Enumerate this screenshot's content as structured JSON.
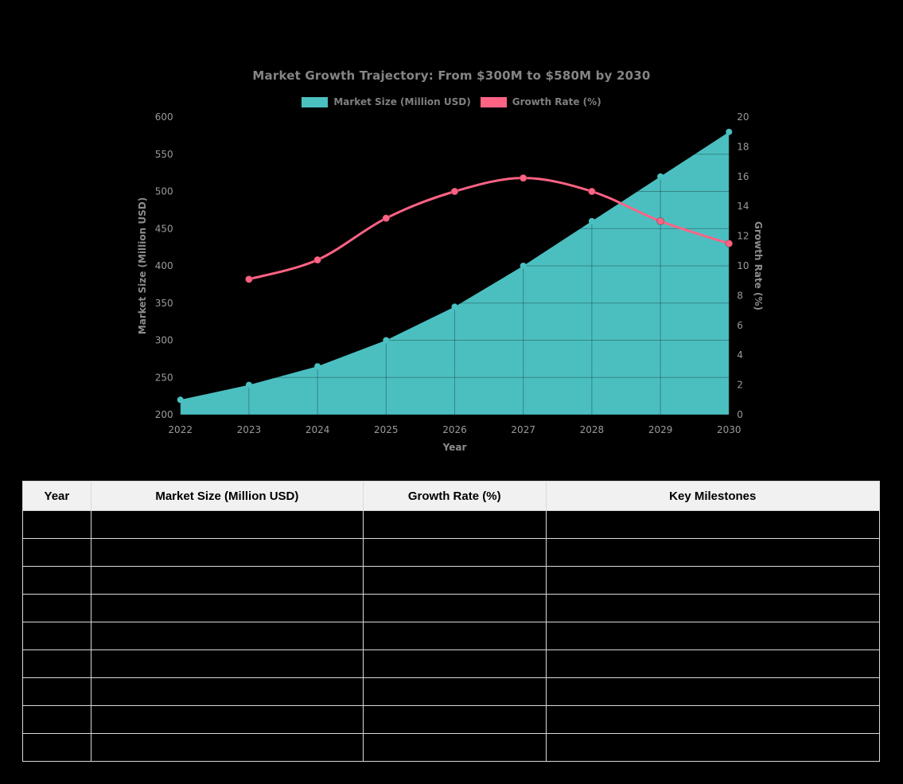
{
  "page": {
    "background": "#000000"
  },
  "chart": {
    "title": "Market Growth Trajectory: From $300M to $580M by 2030",
    "title_color": "#858585",
    "tick_color": "#9a9a9a",
    "axis_label_color": "#8c8c8c",
    "grid_color": "rgba(0,0,0,0.3)",
    "legend": [
      {
        "label": "Market Size (Million USD)",
        "color": "#4BC0C0"
      },
      {
        "label": "Growth Rate (%)",
        "color": "#FF6384"
      }
    ]
  },
  "chart_data": {
    "type": "combo-area-line",
    "title": "Market Growth Trajectory: From $300M to $580M by 2030",
    "x": [
      2022,
      2023,
      2024,
      2025,
      2026,
      2027,
      2028,
      2029,
      2030
    ],
    "xlabel": "Year",
    "series": [
      {
        "name": "Market Size (Million USD)",
        "type": "area",
        "axis": "left",
        "color": "#4BC0C0",
        "values": [
          220,
          240,
          265,
          300,
          345,
          400,
          460,
          520,
          580
        ]
      },
      {
        "name": "Growth Rate (%)",
        "type": "line",
        "axis": "right",
        "color": "#FF6384",
        "values": [
          null,
          9.1,
          10.4,
          13.2,
          15.0,
          15.9,
          15.0,
          13.0,
          11.5
        ]
      }
    ],
    "y_left": {
      "label": "Market Size (Million USD)",
      "min": 200,
      "max": 600,
      "step": 50
    },
    "y_right": {
      "label": "Growth Rate (%)",
      "min": 0,
      "max": 20,
      "step": 2
    },
    "grid": true,
    "legend_position": "top-center"
  },
  "table": {
    "headers": [
      "Year",
      "Market Size (Million USD)",
      "Growth Rate (%)",
      "Key Milestones"
    ],
    "col_widths_pct": [
      7.9,
      31.8,
      21.3,
      39.0
    ],
    "header_bg": "#f1f1f1",
    "border_color": "#d9d9d9",
    "rows": [
      [
        "",
        "",
        "",
        ""
      ],
      [
        "",
        "",
        "",
        ""
      ],
      [
        "",
        "",
        "",
        ""
      ],
      [
        "",
        "",
        "",
        ""
      ],
      [
        "",
        "",
        "",
        ""
      ],
      [
        "",
        "",
        "",
        ""
      ],
      [
        "",
        "",
        "",
        ""
      ],
      [
        "",
        "",
        "",
        ""
      ],
      [
        "",
        "",
        "",
        ""
      ]
    ]
  }
}
